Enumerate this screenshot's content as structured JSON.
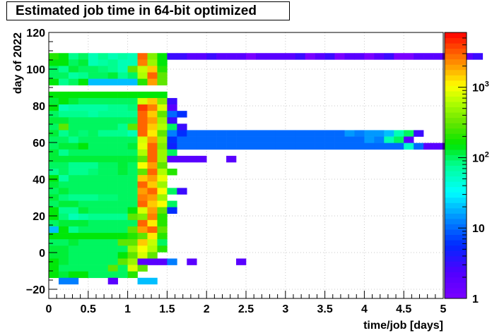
{
  "chart_data": {
    "type": "heatmap",
    "title": "Estimated job time in 64-bit optimized",
    "xlabel": "time/job [days]",
    "ylabel": "day of 2022",
    "xlim": [
      0,
      5
    ],
    "ylim": [
      -25,
      120
    ],
    "x_ticks": [
      "0",
      "0.5",
      "1",
      "1.5",
      "2",
      "2.5",
      "3",
      "3.5",
      "4",
      "4.5",
      "5"
    ],
    "y_ticks": [
      "−20",
      "0",
      "20",
      "40",
      "60",
      "80",
      "100",
      "120"
    ],
    "colorbar": {
      "scale": "log",
      "range": [
        1,
        6000
      ],
      "ticks": [
        {
          "value": 1,
          "label": "1"
        },
        {
          "value": 10,
          "label": "10"
        },
        {
          "value": 100,
          "label": "10",
          "exp": "2"
        },
        {
          "value": 1000,
          "label": "10",
          "exp": "3"
        }
      ]
    },
    "grid": true,
    "bin_width_x": 0.125,
    "bin_height_y": 3.5,
    "rows": [
      {
        "y": 107,
        "x0": 0.0,
        "values": [
          200,
          150,
          80,
          100,
          60,
          80,
          60,
          70,
          60,
          3000,
          400,
          150,
          3,
          3,
          2,
          2,
          3,
          2,
          2,
          2,
          1,
          2,
          2,
          2,
          2,
          3,
          1,
          2,
          3,
          1,
          2,
          2,
          1,
          2,
          3,
          1,
          1,
          2,
          2,
          2,
          1,
          1,
          2,
          3
        ]
      },
      {
        "y": 103.5,
        "x0": 0.0,
        "values": [
          150,
          150,
          100,
          120,
          60,
          70,
          80,
          60,
          60,
          2500,
          500,
          150
        ]
      },
      {
        "y": 100,
        "x0": 0.0,
        "values": [
          100,
          80,
          120,
          100,
          100,
          90,
          80,
          60,
          300,
          700,
          1500,
          200
        ]
      },
      {
        "y": 96.5,
        "x0": 0.0,
        "values": [
          100,
          100,
          70,
          80,
          100,
          100,
          120,
          80,
          100,
          600,
          3000,
          300
        ]
      },
      {
        "y": 93,
        "x0": 0.0,
        "values": [
          150,
          80,
          100,
          150,
          20,
          20,
          20,
          20,
          20,
          200,
          2000,
          300
        ]
      },
      {
        "y": 86,
        "x0": 0.0,
        "values": [
          150,
          150,
          150,
          150,
          150,
          150,
          150,
          150,
          150,
          150,
          150,
          150
        ]
      },
      {
        "y": 82.5,
        "x0": 0.0,
        "values": [
          120,
          150,
          120,
          100,
          100,
          100,
          100,
          100,
          100,
          800,
          1500,
          400,
          3
        ]
      },
      {
        "y": 79,
        "x0": 0.0,
        "values": [
          150,
          60,
          70,
          70,
          70,
          70,
          80,
          80,
          90,
          4000,
          2500,
          800,
          2
        ]
      },
      {
        "y": 75.5,
        "x0": 0.0,
        "values": [
          100,
          80,
          80,
          80,
          70,
          80,
          80,
          80,
          80,
          3000,
          1500,
          300,
          10,
          6
        ]
      },
      {
        "y": 72,
        "x0": 0.0,
        "values": [
          120,
          120,
          100,
          100,
          100,
          100,
          100,
          100,
          100,
          3000,
          2000,
          500,
          3
        ]
      },
      {
        "y": 68.5,
        "x0": 0.0,
        "values": [
          100,
          300,
          100,
          100,
          100,
          100,
          100,
          80,
          300,
          3000,
          1500,
          600,
          100,
          3
        ]
      },
      {
        "y": 65,
        "x0": 0.0,
        "values": [
          120,
          80,
          100,
          90,
          100,
          80,
          80,
          80,
          60,
          3000,
          1200,
          300,
          12,
          6,
          10,
          10,
          10,
          10,
          10,
          10,
          10,
          10,
          10,
          10,
          10,
          10,
          10,
          10,
          10,
          10,
          15,
          12,
          15,
          15,
          20,
          60,
          100,
          3
        ]
      },
      {
        "y": 61.5,
        "x0": 0.0,
        "values": [
          100,
          100,
          80,
          100,
          100,
          100,
          100,
          100,
          100,
          800,
          2000,
          500,
          6,
          10,
          10,
          10,
          10,
          10,
          10,
          10,
          10,
          10,
          10,
          10,
          10,
          10,
          10,
          10,
          10,
          10,
          10,
          10,
          15,
          12,
          60,
          100,
          2
        ]
      },
      {
        "y": 58,
        "x0": 0.0,
        "values": [
          100,
          120,
          120,
          150,
          100,
          100,
          100,
          100,
          120,
          900,
          3000,
          400,
          5,
          10,
          10,
          10,
          10,
          10,
          10,
          10,
          10,
          10,
          10,
          10,
          10,
          10,
          10,
          10,
          10,
          10,
          10,
          10,
          10,
          10,
          10,
          10,
          50,
          10,
          2,
          2,
          2,
          2
        ]
      },
      {
        "y": 54.5,
        "x0": 0.0,
        "values": [
          120,
          80,
          100,
          100,
          100,
          100,
          100,
          100,
          100,
          600,
          3000,
          500,
          100
        ]
      },
      {
        "y": 51,
        "x0": 0.0,
        "values": [
          120,
          120,
          120,
          120,
          120,
          120,
          120,
          120,
          120,
          300,
          3000,
          500,
          2,
          2,
          2,
          2,
          0,
          0,
          2
        ]
      },
      {
        "y": 47.5,
        "x0": 0.0,
        "values": [
          100,
          100,
          80,
          80,
          80,
          100,
          100,
          120,
          100,
          1000,
          2000,
          300
        ]
      },
      {
        "y": 44,
        "x0": 0.0,
        "values": [
          80,
          100,
          80,
          80,
          90,
          100,
          100,
          120,
          100,
          300,
          3000,
          600,
          200
        ]
      },
      {
        "y": 40.5,
        "x0": 0.0,
        "values": [
          150,
          70,
          100,
          100,
          100,
          100,
          100,
          100,
          100,
          1500,
          2000,
          900
        ]
      },
      {
        "y": 37,
        "x0": 0.0,
        "values": [
          120,
          100,
          100,
          100,
          100,
          100,
          100,
          100,
          100,
          3000,
          1500,
          500
        ]
      },
      {
        "y": 33.5,
        "x0": 0.0,
        "values": [
          100,
          120,
          100,
          100,
          100,
          100,
          100,
          100,
          100,
          2000,
          3000,
          1000,
          100,
          3
        ]
      },
      {
        "y": 30,
        "x0": 0.0,
        "values": [
          120,
          90,
          80,
          80,
          80,
          90,
          90,
          100,
          100,
          2500,
          2000,
          500
        ]
      },
      {
        "y": 26.5,
        "x0": 0.0,
        "values": [
          100,
          120,
          120,
          100,
          100,
          100,
          100,
          100,
          100,
          3000,
          1500,
          1000,
          100
        ]
      },
      {
        "y": 23,
        "x0": 0.0,
        "values": [
          150,
          80,
          80,
          120,
          100,
          100,
          100,
          100,
          150,
          800,
          2000,
          300,
          6
        ]
      },
      {
        "y": 19.5,
        "x0": 0.0,
        "values": [
          150,
          90,
          60,
          70,
          80,
          80,
          80,
          80,
          300,
          400,
          2500,
          200
        ]
      },
      {
        "y": 16,
        "x0": 0.0,
        "values": [
          100,
          120,
          120,
          120,
          100,
          100,
          100,
          100,
          100,
          3000,
          1200,
          200
        ]
      },
      {
        "y": 12.5,
        "x0": 0.0,
        "values": [
          20,
          150,
          80,
          100,
          100,
          100,
          100,
          100,
          300,
          2000,
          3000,
          300
        ]
      },
      {
        "y": 9,
        "x0": 0.0,
        "values": [
          150,
          150,
          150,
          150,
          150,
          150,
          150,
          150,
          200,
          300,
          1200,
          200
        ]
      },
      {
        "y": 5.5,
        "x0": 0.0,
        "values": [
          100,
          100,
          120,
          100,
          100,
          100,
          100,
          300,
          300,
          1500,
          700,
          100
        ]
      },
      {
        "y": 2,
        "x0": 0.0,
        "values": [
          120,
          120,
          100,
          100,
          100,
          100,
          100,
          100,
          500,
          1000,
          600,
          200
        ]
      },
      {
        "y": -1.5,
        "x0": 0.0,
        "values": [
          120,
          120,
          100,
          100,
          100,
          100,
          100,
          150,
          300,
          800,
          300
        ]
      },
      {
        "y": -5,
        "x0": 0.0,
        "values": [
          150,
          120,
          100,
          100,
          100,
          100,
          100,
          300,
          500,
          2,
          2,
          2,
          12,
          0,
          2,
          0,
          0,
          0,
          0,
          2
        ]
      },
      {
        "y": -8.5,
        "x0": 0.0,
        "values": [
          150,
          100,
          100,
          100,
          100,
          100,
          300,
          100,
          800,
          300
        ]
      },
      {
        "y": -12,
        "x0": 0.0,
        "values": [
          150,
          120,
          150,
          150,
          100,
          100,
          100,
          100,
          200
        ]
      },
      {
        "y": -15.5,
        "x0": 0.0,
        "values": [
          0,
          12,
          12,
          0,
          0,
          0,
          2,
          0,
          0,
          20,
          20
        ]
      }
    ]
  }
}
